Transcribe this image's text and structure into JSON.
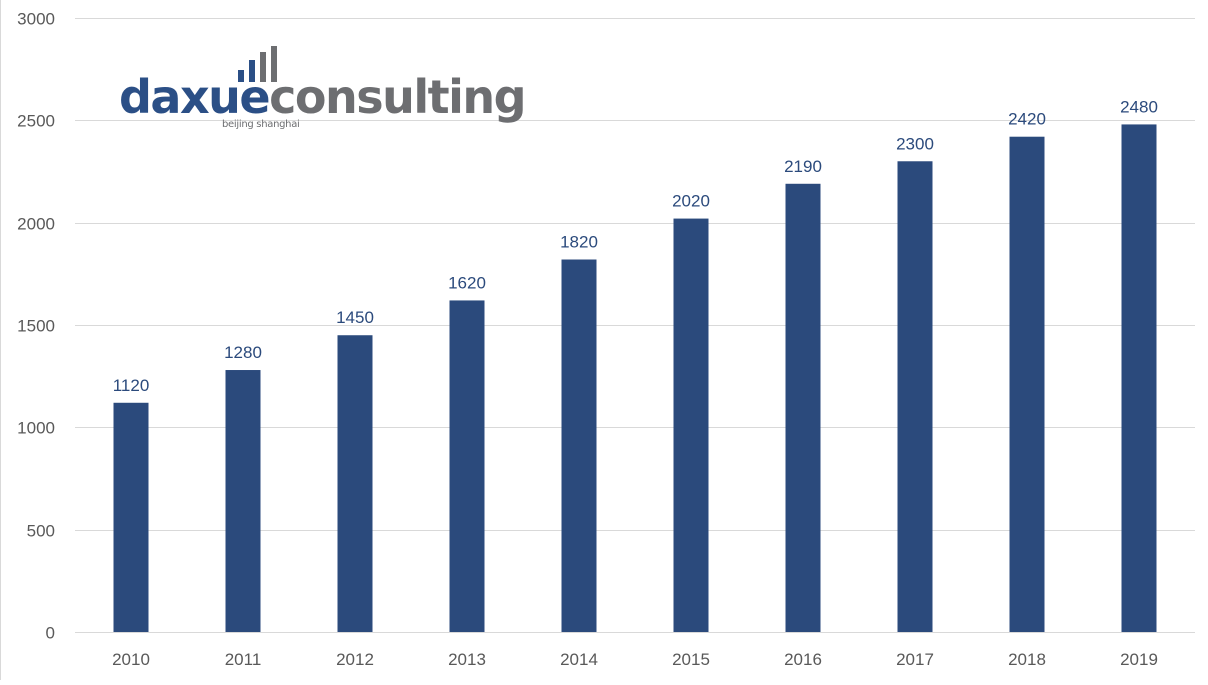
{
  "chart_data": {
    "type": "bar",
    "categories": [
      "2010",
      "2011",
      "2012",
      "2013",
      "2014",
      "2015",
      "2016",
      "2017",
      "2018",
      "2019"
    ],
    "values": [
      1120,
      1280,
      1450,
      1620,
      1820,
      2020,
      2190,
      2300,
      2420,
      2480
    ],
    "data_labels": [
      "1120",
      "1280",
      "1450",
      "1620",
      "1820",
      "2020",
      "2190",
      "2300",
      "2420",
      "2480"
    ],
    "title": "",
    "xlabel": "",
    "ylabel": "",
    "ylim": [
      0,
      3000
    ],
    "yticks": [
      0,
      500,
      1000,
      1500,
      2000,
      2500,
      3000
    ],
    "ytick_labels": [
      "0",
      "500",
      "1000",
      "1500",
      "2000",
      "2500",
      "3000"
    ],
    "grid": true,
    "legend": "none",
    "bar_color": "#2b4a7c",
    "label_color": "#2b4a7c",
    "grid_color": "#d9d9d9"
  },
  "logo": {
    "part_a": "daxue",
    "part_b": "consulting",
    "tagline": "beijing shanghai",
    "icon": "bar-chart-icon",
    "color_a": "#2b4f86",
    "color_b": "#6d6e71"
  }
}
